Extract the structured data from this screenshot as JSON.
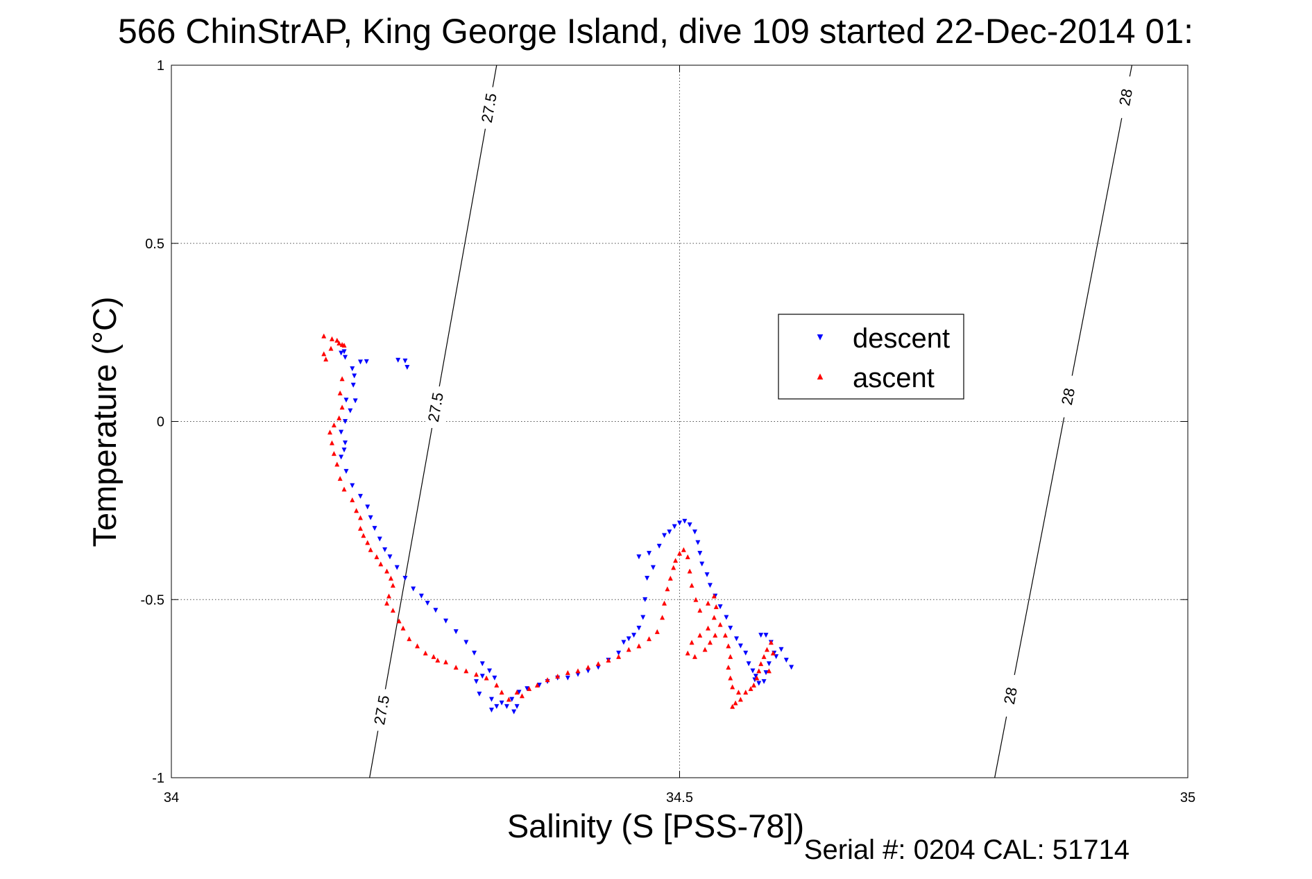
{
  "chart_data": {
    "type": "scatter",
    "title": "566 ChinStrAP, King George Island, dive 109 started 22-Dec-2014 01:",
    "xlabel": "Salinity (S [PSS-78])",
    "ylabel": "Temperature (°C)",
    "xlim": [
      34,
      35
    ],
    "ylim": [
      -1,
      1
    ],
    "x_ticks": [
      34,
      34.5,
      35
    ],
    "x_tick_labels": [
      "34",
      "34.5",
      "35"
    ],
    "y_ticks": [
      -1,
      -0.5,
      0,
      0.5,
      1
    ],
    "y_tick_labels": [
      "-1",
      "-0.5",
      "0",
      "0.5",
      "1"
    ],
    "grid": true,
    "legend_position": "upper-right",
    "footer": "Serial #: 0204  CAL: 51714",
    "series": [
      {
        "name": "descent",
        "color": "#0000ff",
        "marker": "triangle-down",
        "points": [
          [
            34.223,
            0.172
          ],
          [
            34.23,
            0.17
          ],
          [
            34.192,
            0.168
          ],
          [
            34.186,
            0.167
          ],
          [
            34.232,
            0.152
          ],
          [
            34.17,
            0.196
          ],
          [
            34.167,
            0.192
          ],
          [
            34.171,
            0.18
          ],
          [
            34.178,
            0.148
          ],
          [
            34.18,
            0.128
          ],
          [
            34.179,
            0.102
          ],
          [
            34.172,
            0.06
          ],
          [
            34.181,
            0.058
          ],
          [
            34.176,
            0.03
          ],
          [
            34.171,
            0.0
          ],
          [
            34.167,
            -0.03
          ],
          [
            34.171,
            -0.06
          ],
          [
            34.17,
            -0.08
          ],
          [
            34.167,
            -0.1
          ],
          [
            34.172,
            -0.14
          ],
          [
            34.178,
            -0.18
          ],
          [
            34.186,
            -0.21
          ],
          [
            34.193,
            -0.24
          ],
          [
            34.196,
            -0.27
          ],
          [
            34.2,
            -0.3
          ],
          [
            34.205,
            -0.33
          ],
          [
            34.21,
            -0.36
          ],
          [
            34.215,
            -0.38
          ],
          [
            34.222,
            -0.41
          ],
          [
            34.23,
            -0.44
          ],
          [
            34.238,
            -0.47
          ],
          [
            34.246,
            -0.49
          ],
          [
            34.252,
            -0.51
          ],
          [
            34.26,
            -0.53
          ],
          [
            34.27,
            -0.56
          ],
          [
            34.28,
            -0.59
          ],
          [
            34.29,
            -0.62
          ],
          [
            34.298,
            -0.65
          ],
          [
            34.306,
            -0.68
          ],
          [
            34.313,
            -0.7
          ],
          [
            34.318,
            -0.72
          ],
          [
            34.306,
            -0.715
          ],
          [
            34.3,
            -0.73
          ],
          [
            34.303,
            -0.765
          ],
          [
            34.315,
            -0.78
          ],
          [
            34.32,
            -0.8
          ],
          [
            34.315,
            -0.81
          ],
          [
            34.325,
            -0.79
          ],
          [
            34.33,
            -0.8
          ],
          [
            34.335,
            -0.78
          ],
          [
            34.34,
            -0.8
          ],
          [
            34.337,
            -0.815
          ],
          [
            34.342,
            -0.76
          ],
          [
            34.35,
            -0.75
          ],
          [
            34.362,
            -0.74
          ],
          [
            34.37,
            -0.73
          ],
          [
            34.38,
            -0.72
          ],
          [
            34.39,
            -0.72
          ],
          [
            34.4,
            -0.71
          ],
          [
            34.41,
            -0.7
          ],
          [
            34.42,
            -0.69
          ],
          [
            34.43,
            -0.67
          ],
          [
            34.44,
            -0.65
          ],
          [
            34.445,
            -0.62
          ],
          [
            34.45,
            -0.61
          ],
          [
            34.455,
            -0.6
          ],
          [
            34.46,
            -0.58
          ],
          [
            34.464,
            -0.55
          ],
          [
            34.466,
            -0.5
          ],
          [
            34.468,
            -0.44
          ],
          [
            34.474,
            -0.41
          ],
          [
            34.46,
            -0.38
          ],
          [
            34.48,
            -0.35
          ],
          [
            34.47,
            -0.37
          ],
          [
            34.485,
            -0.32
          ],
          [
            34.49,
            -0.31
          ],
          [
            34.495,
            -0.295
          ],
          [
            34.5,
            -0.285
          ],
          [
            34.505,
            -0.28
          ],
          [
            34.51,
            -0.29
          ],
          [
            34.515,
            -0.31
          ],
          [
            34.518,
            -0.34
          ],
          [
            34.52,
            -0.37
          ],
          [
            34.522,
            -0.4
          ],
          [
            34.527,
            -0.43
          ],
          [
            34.53,
            -0.46
          ],
          [
            34.535,
            -0.49
          ],
          [
            34.54,
            -0.52
          ],
          [
            34.546,
            -0.55
          ],
          [
            34.55,
            -0.58
          ],
          [
            34.556,
            -0.61
          ],
          [
            34.56,
            -0.63
          ],
          [
            34.565,
            -0.65
          ],
          [
            34.568,
            -0.68
          ],
          [
            34.572,
            -0.7
          ],
          [
            34.575,
            -0.715
          ],
          [
            34.574,
            -0.725
          ],
          [
            34.578,
            -0.735
          ],
          [
            34.583,
            -0.73
          ],
          [
            34.585,
            -0.705
          ],
          [
            34.588,
            -0.68
          ],
          [
            34.593,
            -0.65
          ],
          [
            34.59,
            -0.62
          ],
          [
            34.585,
            -0.6
          ],
          [
            34.58,
            -0.6
          ],
          [
            34.6,
            -0.64
          ],
          [
            34.605,
            -0.67
          ],
          [
            34.61,
            -0.69
          ],
          [
            34.595,
            -0.66
          ]
        ]
      },
      {
        "name": "ascent",
        "color": "#ff0000",
        "marker": "triangle-up",
        "points": [
          [
            34.15,
            0.24
          ],
          [
            34.158,
            0.232
          ],
          [
            34.163,
            0.228
          ],
          [
            34.165,
            0.22
          ],
          [
            34.157,
            0.205
          ],
          [
            34.15,
            0.19
          ],
          [
            34.152,
            0.175
          ],
          [
            34.168,
            0.216
          ],
          [
            34.17,
            0.214
          ],
          [
            34.168,
            0.12
          ],
          [
            34.166,
            0.08
          ],
          [
            34.168,
            0.04
          ],
          [
            34.165,
            0.01
          ],
          [
            34.16,
            -0.01
          ],
          [
            34.156,
            -0.03
          ],
          [
            34.158,
            -0.06
          ],
          [
            34.16,
            -0.09
          ],
          [
            34.163,
            -0.12
          ],
          [
            34.166,
            -0.16
          ],
          [
            34.17,
            -0.19
          ],
          [
            34.178,
            -0.22
          ],
          [
            34.182,
            -0.25
          ],
          [
            34.186,
            -0.27
          ],
          [
            34.186,
            -0.3
          ],
          [
            34.189,
            -0.32
          ],
          [
            34.193,
            -0.34
          ],
          [
            34.196,
            -0.36
          ],
          [
            34.202,
            -0.38
          ],
          [
            34.206,
            -0.4
          ],
          [
            34.212,
            -0.42
          ],
          [
            34.216,
            -0.44
          ],
          [
            34.218,
            -0.46
          ],
          [
            34.214,
            -0.49
          ],
          [
            34.212,
            -0.51
          ],
          [
            34.218,
            -0.53
          ],
          [
            34.224,
            -0.56
          ],
          [
            34.228,
            -0.58
          ],
          [
            34.234,
            -0.61
          ],
          [
            34.242,
            -0.63
          ],
          [
            34.25,
            -0.65
          ],
          [
            34.258,
            -0.66
          ],
          [
            34.262,
            -0.67
          ],
          [
            34.27,
            -0.675
          ],
          [
            34.28,
            -0.69
          ],
          [
            34.29,
            -0.7
          ],
          [
            34.3,
            -0.71
          ],
          [
            34.31,
            -0.72
          ],
          [
            34.32,
            -0.74
          ],
          [
            34.325,
            -0.76
          ],
          [
            34.332,
            -0.78
          ],
          [
            34.34,
            -0.76
          ],
          [
            34.345,
            -0.77
          ],
          [
            34.352,
            -0.75
          ],
          [
            34.36,
            -0.74
          ],
          [
            34.37,
            -0.725
          ],
          [
            34.38,
            -0.715
          ],
          [
            34.39,
            -0.705
          ],
          [
            34.4,
            -0.7
          ],
          [
            34.41,
            -0.69
          ],
          [
            34.42,
            -0.68
          ],
          [
            34.43,
            -0.67
          ],
          [
            34.44,
            -0.66
          ],
          [
            34.45,
            -0.64
          ],
          [
            34.46,
            -0.63
          ],
          [
            34.47,
            -0.61
          ],
          [
            34.478,
            -0.59
          ],
          [
            34.483,
            -0.55
          ],
          [
            34.485,
            -0.51
          ],
          [
            34.488,
            -0.47
          ],
          [
            34.491,
            -0.44
          ],
          [
            34.494,
            -0.41
          ],
          [
            34.496,
            -0.39
          ],
          [
            34.5,
            -0.37
          ],
          [
            34.504,
            -0.36
          ],
          [
            34.508,
            -0.38
          ],
          [
            34.51,
            -0.42
          ],
          [
            34.512,
            -0.46
          ],
          [
            34.516,
            -0.5
          ],
          [
            34.52,
            -0.53
          ],
          [
            34.528,
            -0.51
          ],
          [
            34.534,
            -0.49
          ],
          [
            34.536,
            -0.52
          ],
          [
            34.534,
            -0.55
          ],
          [
            34.528,
            -0.58
          ],
          [
            34.52,
            -0.6
          ],
          [
            34.512,
            -0.62
          ],
          [
            34.508,
            -0.65
          ],
          [
            34.515,
            -0.66
          ],
          [
            34.525,
            -0.64
          ],
          [
            34.53,
            -0.62
          ],
          [
            34.535,
            -0.6
          ],
          [
            34.54,
            -0.57
          ],
          [
            34.545,
            -0.6
          ],
          [
            34.548,
            -0.63
          ],
          [
            34.55,
            -0.66
          ],
          [
            34.548,
            -0.69
          ],
          [
            34.55,
            -0.72
          ],
          [
            34.552,
            -0.745
          ],
          [
            34.558,
            -0.76
          ],
          [
            34.56,
            -0.78
          ],
          [
            34.555,
            -0.79
          ],
          [
            34.552,
            -0.8
          ],
          [
            34.565,
            -0.76
          ],
          [
            34.57,
            -0.75
          ],
          [
            34.573,
            -0.74
          ],
          [
            34.576,
            -0.72
          ],
          [
            34.578,
            -0.7
          ],
          [
            34.58,
            -0.68
          ],
          [
            34.583,
            -0.66
          ],
          [
            34.586,
            -0.64
          ],
          [
            34.59,
            -0.62
          ],
          [
            34.592,
            -0.65
          ],
          [
            34.588,
            -0.7
          ]
        ]
      }
    ],
    "contours": [
      {
        "label": "27.5",
        "x_top": 34.32,
        "x_bottom": 34.195,
        "label_y": [
          0.88,
          0.04,
          -0.81
        ]
      },
      {
        "label": "28",
        "x_top": 34.945,
        "x_bottom": 34.81,
        "label_y": [
          0.91,
          0.07,
          -0.77
        ]
      }
    ]
  }
}
